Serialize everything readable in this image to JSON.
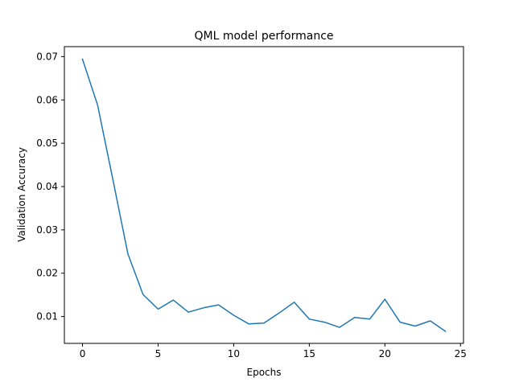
{
  "chart_data": {
    "type": "line",
    "title": "QML model performance",
    "xlabel": "Epochs",
    "ylabel": "Validation Accuracy",
    "xlim": [
      -1.2,
      25.2
    ],
    "ylim": [
      0.0038,
      0.0723
    ],
    "xticks": [
      0,
      5,
      10,
      15,
      20,
      25
    ],
    "xtick_labels": [
      "0",
      "5",
      "10",
      "15",
      "20",
      "25"
    ],
    "yticks": [
      0.01,
      0.02,
      0.03,
      0.04,
      0.05,
      0.06,
      0.07
    ],
    "ytick_labels": [
      "0.01",
      "0.02",
      "0.03",
      "0.04",
      "0.05",
      "0.06",
      "0.07"
    ],
    "grid": false,
    "series": [
      {
        "color": "#1f77b4",
        "x": [
          0,
          1,
          2,
          3,
          4,
          5,
          6,
          7,
          8,
          9,
          10,
          11,
          12,
          13,
          14,
          15,
          16,
          17,
          18,
          19,
          20,
          21,
          22,
          23,
          24
        ],
        "values": [
          0.0694,
          0.0588,
          0.0418,
          0.0245,
          0.0151,
          0.0117,
          0.0138,
          0.011,
          0.012,
          0.0127,
          0.0103,
          0.0083,
          0.0085,
          0.0108,
          0.0133,
          0.0094,
          0.0087,
          0.0075,
          0.0098,
          0.0094,
          0.014,
          0.0087,
          0.0078,
          0.009,
          0.0066
        ]
      }
    ]
  }
}
